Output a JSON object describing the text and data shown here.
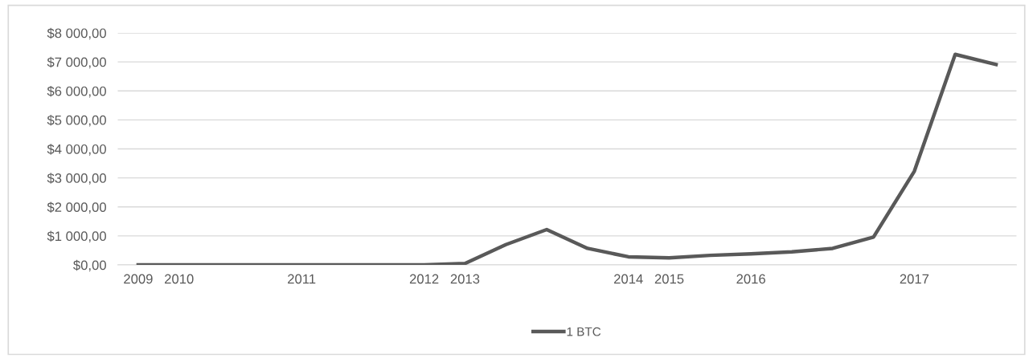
{
  "chart_data": {
    "type": "line",
    "categories": [
      "2009",
      "2010",
      null,
      null,
      "2011",
      null,
      null,
      "2012",
      "2013",
      null,
      null,
      null,
      "2014",
      "2015",
      null,
      "2016",
      null,
      null,
      null,
      "2017",
      null,
      null
    ],
    "series": [
      {
        "name": "1 BTC",
        "color": "#595959",
        "values": [
          0,
          0,
          0,
          0,
          0,
          0,
          0,
          0,
          50,
          700,
          1220,
          570,
          280,
          245,
          330,
          380,
          450,
          570,
          960,
          3230,
          7260,
          6910
        ]
      }
    ],
    "ylim": [
      0,
      8000
    ],
    "yticks": [
      {
        "value": 0,
        "label": "$0,00"
      },
      {
        "value": 1000,
        "label": "$1 000,00"
      },
      {
        "value": 2000,
        "label": "$2 000,00"
      },
      {
        "value": 3000,
        "label": "$3 000,00"
      },
      {
        "value": 4000,
        "label": "$4 000,00"
      },
      {
        "value": 5000,
        "label": "$5 000,00"
      },
      {
        "value": 6000,
        "label": "$6 000,00"
      },
      {
        "value": 7000,
        "label": "$7 000,00"
      },
      {
        "value": 8000,
        "label": "$8 000,00"
      }
    ],
    "grid": "y",
    "legend": "bottom",
    "marker": "none",
    "line_style": "solid"
  }
}
